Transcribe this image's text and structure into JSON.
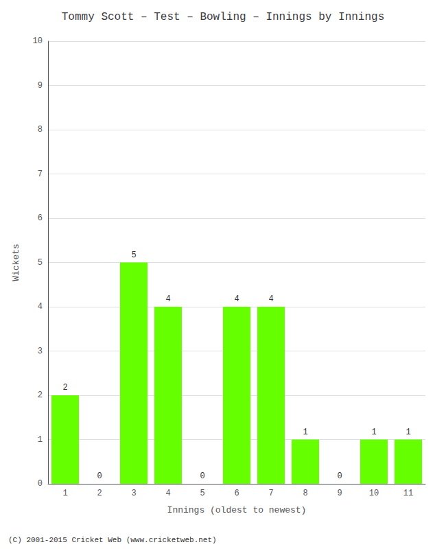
{
  "chart_data": {
    "type": "bar",
    "title": "Tommy Scott – Test – Bowling – Innings by Innings",
    "x_label": "Innings (oldest to newest)",
    "y_label": "Wickets",
    "categories": [
      "1",
      "2",
      "3",
      "4",
      "5",
      "6",
      "7",
      "8",
      "9",
      "10",
      "11"
    ],
    "values": [
      2,
      0,
      5,
      4,
      0,
      4,
      4,
      1,
      0,
      1,
      1
    ],
    "color": "#66ff00",
    "ylim": [
      0,
      10
    ],
    "yticks": [
      0,
      1,
      2,
      3,
      4,
      5,
      6,
      7,
      8,
      9,
      10
    ],
    "grid": true,
    "data_labels": true,
    "annotations": [
      "(C) 2001-2015 Cricket Web (www.cricketweb.net)"
    ]
  }
}
